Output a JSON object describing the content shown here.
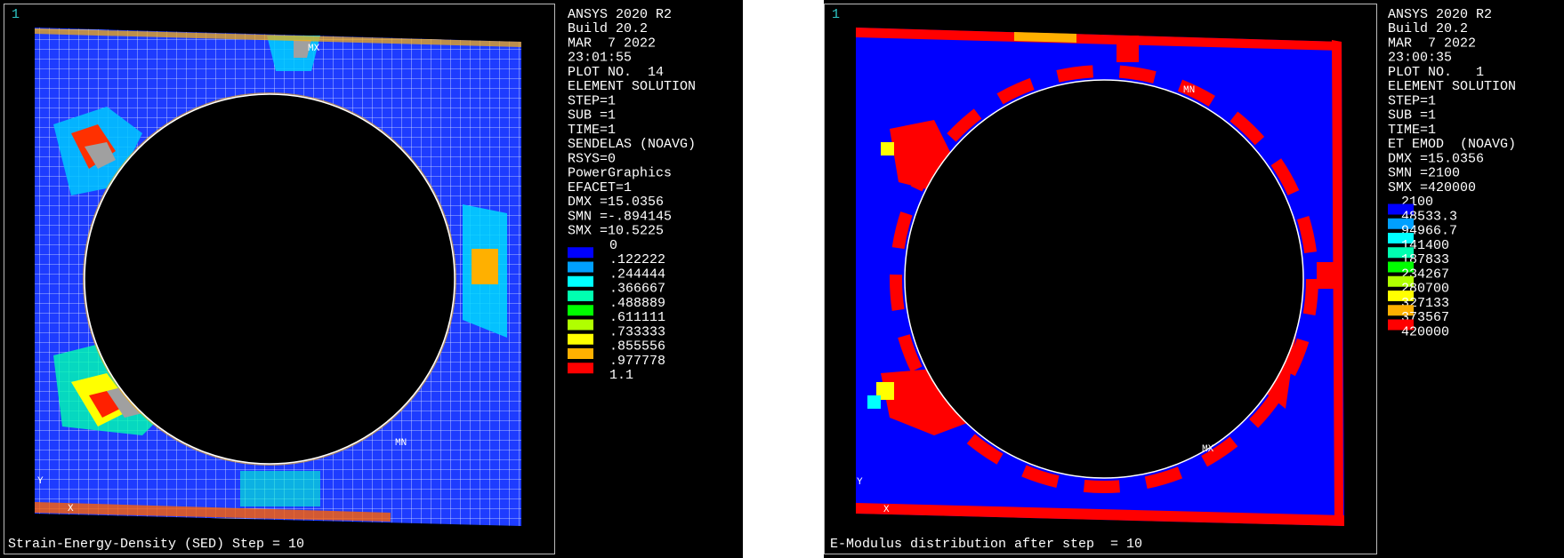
{
  "panels": [
    {
      "window_number": "1",
      "info": [
        "ANSYS 2020 R2",
        "Build 20.2",
        "MAR  7 2022",
        "23:01:55",
        "PLOT NO.  14",
        "ELEMENT SOLUTION",
        "STEP=1",
        "SUB =1",
        "TIME=1",
        "SENDELAS (NOAVG)",
        "RSYS=0",
        "PowerGraphics",
        "EFACET=1",
        "DMX =15.0356",
        "SMN =-.894145",
        "SMX =10.5225"
      ],
      "legend": [
        ".122222",
        ".244444",
        ".366667",
        ".488889",
        ".611111",
        ".733333",
        ".855556",
        ".977778",
        "1.1"
      ],
      "legend_first": "0",
      "colors": [
        "#0000ff",
        "#00a0ff",
        "#00ffff",
        "#00ffb0",
        "#00ff00",
        "#b0ff00",
        "#ffff00",
        "#ffb000",
        "#ff0000"
      ],
      "markers": [
        "MX",
        "MN",
        "Y",
        "X"
      ],
      "caption": "Strain-Energy-Density (SED) Step = 10"
    },
    {
      "window_number": "1",
      "info": [
        "ANSYS 2020 R2",
        "Build 20.2",
        "MAR  7 2022",
        "23:00:35",
        "PLOT NO.   1",
        "ELEMENT SOLUTION",
        "STEP=1",
        "SUB =1",
        "TIME=1",
        "ET EMOD  (NOAVG)",
        "DMX =15.0356",
        "SMN =2100",
        "SMX =420000"
      ],
      "legend": [
        "48533.3",
        "94966.7",
        "141400",
        "187833",
        "234267",
        "280700",
        "327133",
        "373567",
        "420000"
      ],
      "legend_first": "2100",
      "colors": [
        "#0000ff",
        "#00a0ff",
        "#00ffff",
        "#00ffb0",
        "#00ff00",
        "#b0ff00",
        "#ffff00",
        "#ffb000",
        "#ff0000"
      ],
      "markers": [
        "MN",
        "MX",
        "Y",
        "X"
      ],
      "caption": "E-Modulus distribution after step  = 10"
    }
  ]
}
